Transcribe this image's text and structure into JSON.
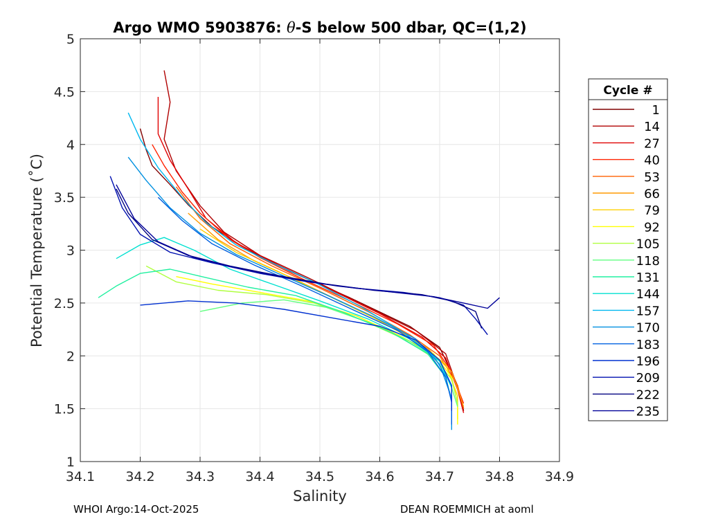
{
  "chart_data": {
    "type": "line",
    "title": "Argo WMO 5903876: θ-S below 500 dbar,  QC=(1,2)",
    "title_prefix": "Argo WMO 5903876: ",
    "title_theta": "θ",
    "title_suffix": "-S below 500 dbar,  QC=(1,2)",
    "xlabel": "Salinity",
    "ylabel": "Potential Temperature (˚C)",
    "xlim": [
      34.1,
      34.9
    ],
    "ylim": [
      1,
      5
    ],
    "xticks": [
      "34.1",
      "34.2",
      "34.3",
      "34.4",
      "34.5",
      "34.6",
      "34.7",
      "34.8",
      "34.9"
    ],
    "yticks": [
      "1",
      "1.5",
      "2",
      "2.5",
      "3",
      "3.5",
      "4",
      "4.5",
      "5"
    ],
    "grid": true,
    "legend_title": "Cycle #",
    "legend_position": "right",
    "series": [
      {
        "name": "1",
        "color": "#800000",
        "points": [
          [
            34.2,
            4.15
          ],
          [
            34.21,
            3.95
          ],
          [
            34.22,
            3.8
          ],
          [
            34.25,
            3.62
          ],
          [
            34.28,
            3.43
          ],
          [
            34.32,
            3.22
          ],
          [
            34.38,
            3.0
          ],
          [
            34.45,
            2.8
          ],
          [
            34.55,
            2.55
          ],
          [
            34.65,
            2.28
          ],
          [
            34.7,
            2.08
          ],
          [
            34.73,
            1.72
          ],
          [
            34.74,
            1.48
          ]
        ]
      },
      {
        "name": "14",
        "color": "#b00000",
        "points": [
          [
            34.24,
            4.7
          ],
          [
            34.25,
            4.4
          ],
          [
            34.24,
            4.05
          ],
          [
            34.26,
            3.75
          ],
          [
            34.3,
            3.42
          ],
          [
            34.34,
            3.17
          ],
          [
            34.4,
            2.95
          ],
          [
            34.48,
            2.74
          ],
          [
            34.57,
            2.49
          ],
          [
            34.66,
            2.24
          ],
          [
            34.71,
            2.02
          ],
          [
            34.73,
            1.7
          ],
          [
            34.74,
            1.5
          ]
        ]
      },
      {
        "name": "27",
        "color": "#e00000",
        "points": [
          [
            34.23,
            4.45
          ],
          [
            34.23,
            4.1
          ],
          [
            34.25,
            3.85
          ],
          [
            34.28,
            3.58
          ],
          [
            34.31,
            3.3
          ],
          [
            34.36,
            3.07
          ],
          [
            34.43,
            2.86
          ],
          [
            34.52,
            2.62
          ],
          [
            34.6,
            2.4
          ],
          [
            34.67,
            2.18
          ],
          [
            34.71,
            1.98
          ],
          [
            34.73,
            1.68
          ],
          [
            34.74,
            1.46
          ]
        ]
      },
      {
        "name": "40",
        "color": "#ff2200",
        "points": [
          [
            34.22,
            4.0
          ],
          [
            34.24,
            3.8
          ],
          [
            34.27,
            3.55
          ],
          [
            34.3,
            3.35
          ],
          [
            34.35,
            3.1
          ],
          [
            34.4,
            2.93
          ],
          [
            34.47,
            2.73
          ],
          [
            34.55,
            2.52
          ],
          [
            34.63,
            2.3
          ],
          [
            34.69,
            2.1
          ],
          [
            34.72,
            1.85
          ],
          [
            34.74,
            1.55
          ]
        ]
      },
      {
        "name": "53",
        "color": "#ff6000",
        "points": [
          [
            34.26,
            3.6
          ],
          [
            34.3,
            3.3
          ],
          [
            34.35,
            3.06
          ],
          [
            34.42,
            2.85
          ],
          [
            34.5,
            2.64
          ],
          [
            34.58,
            2.42
          ],
          [
            34.65,
            2.2
          ],
          [
            34.7,
            2.0
          ],
          [
            34.73,
            1.72
          ],
          [
            34.74,
            1.5
          ]
        ]
      },
      {
        "name": "66",
        "color": "#ff9a00",
        "points": [
          [
            34.28,
            3.35
          ],
          [
            34.33,
            3.1
          ],
          [
            34.39,
            2.9
          ],
          [
            34.46,
            2.72
          ],
          [
            34.54,
            2.5
          ],
          [
            34.62,
            2.28
          ],
          [
            34.68,
            2.07
          ],
          [
            34.72,
            1.85
          ],
          [
            34.74,
            1.52
          ]
        ]
      },
      {
        "name": "79",
        "color": "#ffd000",
        "points": [
          [
            34.3,
            3.2
          ],
          [
            34.36,
            2.98
          ],
          [
            34.43,
            2.8
          ],
          [
            34.51,
            2.58
          ],
          [
            34.59,
            2.36
          ],
          [
            34.66,
            2.14
          ],
          [
            34.71,
            1.92
          ],
          [
            34.73,
            1.62
          ],
          [
            34.73,
            1.4
          ]
        ]
      },
      {
        "name": "92",
        "color": "#ffff00",
        "points": [
          [
            34.26,
            2.75
          ],
          [
            34.32,
            2.68
          ],
          [
            34.4,
            2.6
          ],
          [
            34.48,
            2.52
          ],
          [
            34.56,
            2.38
          ],
          [
            34.63,
            2.2
          ],
          [
            34.69,
            2.02
          ],
          [
            34.72,
            1.8
          ],
          [
            34.73,
            1.55
          ],
          [
            34.73,
            1.35
          ]
        ]
      },
      {
        "name": "105",
        "color": "#b0ff40",
        "points": [
          [
            34.21,
            2.85
          ],
          [
            34.26,
            2.7
          ],
          [
            34.33,
            2.62
          ],
          [
            34.41,
            2.58
          ],
          [
            34.49,
            2.5
          ],
          [
            34.57,
            2.34
          ],
          [
            34.64,
            2.16
          ],
          [
            34.69,
            1.98
          ],
          [
            34.72,
            1.78
          ],
          [
            34.73,
            1.55
          ]
        ]
      },
      {
        "name": "118",
        "color": "#60ff80",
        "points": [
          [
            34.3,
            2.42
          ],
          [
            34.37,
            2.5
          ],
          [
            34.44,
            2.53
          ],
          [
            34.51,
            2.46
          ],
          [
            34.58,
            2.32
          ],
          [
            34.65,
            2.14
          ],
          [
            34.7,
            1.95
          ],
          [
            34.72,
            1.7
          ],
          [
            34.73,
            1.52
          ]
        ]
      },
      {
        "name": "131",
        "color": "#20f0a0",
        "points": [
          [
            34.13,
            2.55
          ],
          [
            34.16,
            2.66
          ],
          [
            34.2,
            2.78
          ],
          [
            34.25,
            2.82
          ],
          [
            34.31,
            2.74
          ],
          [
            34.38,
            2.65
          ],
          [
            34.46,
            2.57
          ],
          [
            34.54,
            2.41
          ],
          [
            34.62,
            2.22
          ],
          [
            34.68,
            2.02
          ],
          [
            34.71,
            1.8
          ],
          [
            34.72,
            1.58
          ]
        ]
      },
      {
        "name": "144",
        "color": "#00e0d0",
        "points": [
          [
            34.16,
            2.92
          ],
          [
            34.2,
            3.05
          ],
          [
            34.24,
            3.12
          ],
          [
            34.29,
            3.0
          ],
          [
            34.35,
            2.82
          ],
          [
            34.42,
            2.68
          ],
          [
            34.5,
            2.52
          ],
          [
            34.58,
            2.35
          ],
          [
            34.65,
            2.16
          ],
          [
            34.7,
            1.95
          ],
          [
            34.72,
            1.7
          ]
        ]
      },
      {
        "name": "157",
        "color": "#00b8f0",
        "points": [
          [
            34.18,
            4.3
          ],
          [
            34.2,
            4.05
          ],
          [
            34.23,
            3.78
          ],
          [
            34.27,
            3.5
          ],
          [
            34.31,
            3.26
          ],
          [
            34.36,
            3.05
          ],
          [
            34.42,
            2.88
          ],
          [
            34.49,
            2.7
          ],
          [
            34.57,
            2.46
          ],
          [
            34.64,
            2.22
          ],
          [
            34.69,
            2.0
          ],
          [
            34.72,
            1.72
          ]
        ]
      },
      {
        "name": "170",
        "color": "#0090e0",
        "points": [
          [
            34.18,
            3.88
          ],
          [
            34.21,
            3.66
          ],
          [
            34.25,
            3.4
          ],
          [
            34.3,
            3.16
          ],
          [
            34.36,
            2.96
          ],
          [
            34.43,
            2.78
          ],
          [
            34.51,
            2.58
          ],
          [
            34.59,
            2.37
          ],
          [
            34.66,
            2.16
          ],
          [
            34.7,
            1.92
          ],
          [
            34.72,
            1.6
          ],
          [
            34.72,
            1.3
          ]
        ]
      },
      {
        "name": "183",
        "color": "#0060e0",
        "points": [
          [
            34.23,
            3.5
          ],
          [
            34.27,
            3.28
          ],
          [
            34.32,
            3.06
          ],
          [
            34.39,
            2.86
          ],
          [
            34.47,
            2.66
          ],
          [
            34.55,
            2.45
          ],
          [
            34.63,
            2.24
          ],
          [
            34.68,
            2.04
          ],
          [
            34.71,
            1.8
          ],
          [
            34.72,
            1.56
          ],
          [
            34.72,
            1.35
          ]
        ]
      },
      {
        "name": "196",
        "color": "#0030d0",
        "points": [
          [
            34.2,
            2.48
          ],
          [
            34.28,
            2.52
          ],
          [
            34.36,
            2.5
          ],
          [
            34.44,
            2.44
          ],
          [
            34.52,
            2.36
          ],
          [
            34.6,
            2.28
          ],
          [
            34.66,
            2.15
          ],
          [
            34.7,
            1.96
          ],
          [
            34.72,
            1.72
          ],
          [
            34.72,
            1.48
          ]
        ]
      },
      {
        "name": "209",
        "color": "#0010b0",
        "points": [
          [
            34.15,
            3.7
          ],
          [
            34.17,
            3.4
          ],
          [
            34.2,
            3.15
          ],
          [
            34.25,
            2.98
          ],
          [
            34.32,
            2.88
          ],
          [
            34.4,
            2.78
          ],
          [
            34.48,
            2.7
          ],
          [
            34.56,
            2.64
          ],
          [
            34.64,
            2.6
          ],
          [
            34.7,
            2.55
          ],
          [
            34.74,
            2.48
          ],
          [
            34.76,
            2.35
          ],
          [
            34.78,
            2.2
          ]
        ]
      },
      {
        "name": "222",
        "color": "#000080",
        "points": [
          [
            34.16,
            3.58
          ],
          [
            34.18,
            3.35
          ],
          [
            34.22,
            3.1
          ],
          [
            34.28,
            2.95
          ],
          [
            34.35,
            2.85
          ],
          [
            34.43,
            2.76
          ],
          [
            34.51,
            2.68
          ],
          [
            34.59,
            2.62
          ],
          [
            34.67,
            2.58
          ],
          [
            34.72,
            2.52
          ],
          [
            34.76,
            2.42
          ],
          [
            34.77,
            2.26
          ]
        ]
      },
      {
        "name": "235",
        "color": "#000099",
        "points": [
          [
            34.16,
            3.62
          ],
          [
            34.19,
            3.3
          ],
          [
            34.23,
            3.08
          ],
          [
            34.29,
            2.93
          ],
          [
            34.37,
            2.82
          ],
          [
            34.45,
            2.73
          ],
          [
            34.53,
            2.66
          ],
          [
            34.61,
            2.61
          ],
          [
            34.69,
            2.56
          ],
          [
            34.74,
            2.5
          ],
          [
            34.78,
            2.45
          ],
          [
            34.8,
            2.55
          ]
        ]
      }
    ]
  },
  "footer": {
    "left": "WHOI Argo:14-Oct-2025",
    "right": "DEAN ROEMMICH at aoml"
  }
}
